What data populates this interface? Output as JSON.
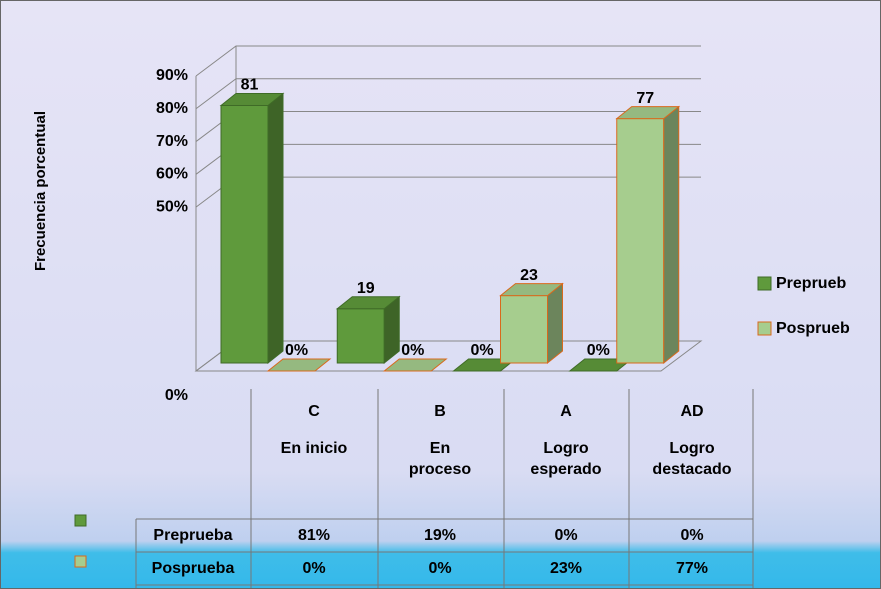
{
  "chart_data": {
    "type": "bar",
    "y_label": "Frecuencia porcentual",
    "categories": [
      "C",
      "B",
      "A",
      "AD"
    ],
    "category_names": [
      "En inicio",
      "En proceso",
      "Logro esperado",
      "Logro destacado"
    ],
    "series": [
      {
        "name": "Preprueba",
        "legend_label": "Preprueb",
        "color": "#5f9a3c",
        "edge": "#3f6b27",
        "values": [
          81,
          19,
          0,
          0
        ],
        "value_labels": [
          "81",
          "19",
          "0%",
          "0%"
        ],
        "table_values": [
          "81%",
          "19%",
          "0%",
          "0%"
        ]
      },
      {
        "name": "Posprueba",
        "legend_label": "Posprueb",
        "color": "#a6cd8e",
        "edge": "#d9691c",
        "values": [
          0,
          0,
          23,
          77
        ],
        "value_labels": [
          "0%",
          "0%",
          "23",
          "77"
        ],
        "table_values": [
          "0%",
          "0%",
          "23%",
          "77%"
        ]
      }
    ],
    "ylim": [
      0,
      90
    ],
    "yticks": [
      {
        "value": 0,
        "label": "0%"
      },
      {
        "value": 50,
        "label": "50%"
      },
      {
        "value": 60,
        "label": "60%"
      },
      {
        "value": 70,
        "label": "70%"
      },
      {
        "value": 80,
        "label": "80%"
      },
      {
        "value": 90,
        "label": "90%"
      }
    ],
    "grid": true
  }
}
